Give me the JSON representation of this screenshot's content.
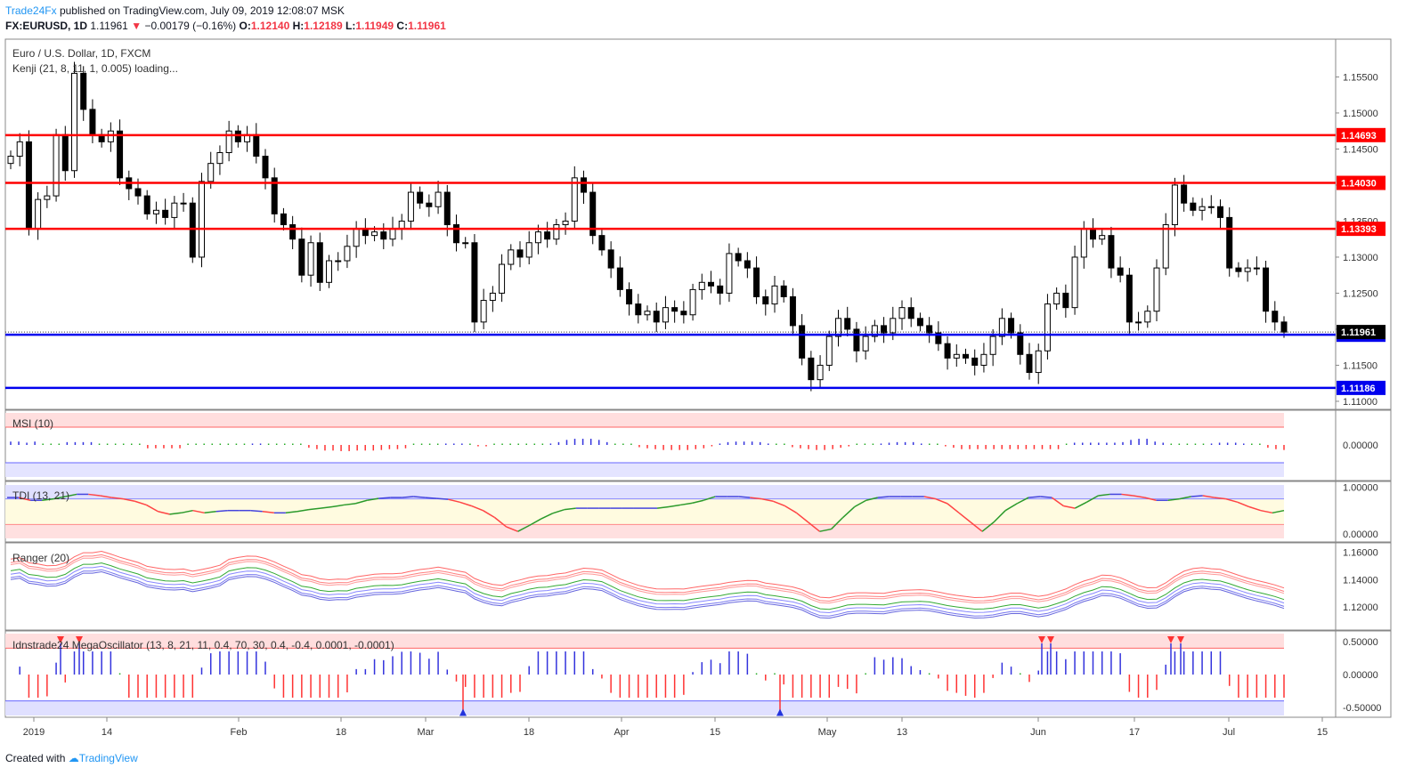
{
  "header": {
    "brand": "Trade24Fx",
    "published": "published on TradingView.com, July 09, 2019 12:08:07 MSK",
    "symbol": "FX:EURUSD, 1D",
    "last": "1.11961",
    "change": "−0.00179 (−0.16%)",
    "o_label": "O:",
    "o": "1.12140",
    "h_label": "H:",
    "h": "1.12189",
    "l_label": "L:",
    "l": "1.11949",
    "c_label": "C:",
    "c": "1.11961"
  },
  "main_pane": {
    "title": "Euro / U.S. Dollar, 1D, FXCM",
    "indicator": "Kenji (21, 8, 11, 1, 0.005) loading..."
  },
  "panes": {
    "msi": "MSI (10)",
    "tdi": "TDI (13, 21)",
    "ranger": "Ranger (20)",
    "mega": "Idnstrade24 MegaOscillator (13, 8, 21, 11, 0.4, 70, 30, 0.4, -0.4, 0.0001, -0.0001)"
  },
  "footer": {
    "created": "Created with",
    "brand": "TradingView"
  },
  "colors": {
    "up": "#ffffff",
    "down": "#000000",
    "red_level": "#ff0000",
    "blue_level": "#0000ee",
    "osc_pos": "#3333dd",
    "osc_neg": "#ff3333",
    "osc_zero": "#22aa22"
  },
  "chart_data": [
    {
      "type": "candlestick",
      "title": "Euro / U.S. Dollar, 1D, FXCM",
      "ylim": [
        1.1095,
        1.1595
      ],
      "y_ticks": [
        "1.15500",
        "1.15000",
        "1.14500",
        "1.14000",
        "1.13500",
        "1.13000",
        "1.12500",
        "1.12000",
        "1.11500",
        "1.11000"
      ],
      "x_ticks": [
        "2019",
        "14",
        "Feb",
        "18",
        "Mar",
        "18",
        "Apr",
        "15",
        "May",
        "13",
        "Jun",
        "17",
        "Jul",
        "15"
      ],
      "levels": [
        {
          "value": 1.14693,
          "color": "red",
          "label": "1.14693"
        },
        {
          "value": 1.1403,
          "color": "red",
          "label": "1.14030"
        },
        {
          "value": 1.13393,
          "color": "red",
          "label": "1.13393"
        },
        {
          "value": 1.11923,
          "color": "blue",
          "label": "1.11923"
        },
        {
          "value": 1.11186,
          "color": "blue",
          "label": "1.11186"
        }
      ],
      "last_price": "1.11961",
      "closes": [
        1.144,
        1.146,
        1.134,
        1.138,
        1.1385,
        1.147,
        1.142,
        1.1555,
        1.1505,
        1.147,
        1.146,
        1.1475,
        1.141,
        1.1395,
        1.1385,
        1.136,
        1.1365,
        1.1355,
        1.1375,
        1.1375,
        1.13,
        1.1405,
        1.143,
        1.1445,
        1.1475,
        1.146,
        1.147,
        1.144,
        1.141,
        1.136,
        1.1345,
        1.1325,
        1.1275,
        1.132,
        1.1265,
        1.1295,
        1.1295,
        1.1315,
        1.134,
        1.133,
        1.1335,
        1.1325,
        1.134,
        1.135,
        1.139,
        1.1375,
        1.137,
        1.139,
        1.1345,
        1.132,
        1.132,
        1.121,
        1.124,
        1.125,
        1.129,
        1.131,
        1.13,
        1.132,
        1.1335,
        1.1325,
        1.1345,
        1.135,
        1.141,
        1.139,
        1.133,
        1.131,
        1.1285,
        1.1255,
        1.1235,
        1.122,
        1.1225,
        1.121,
        1.123,
        1.1225,
        1.122,
        1.1255,
        1.1265,
        1.126,
        1.125,
        1.1305,
        1.1295,
        1.1285,
        1.1245,
        1.1235,
        1.126,
        1.1245,
        1.1205,
        1.116,
        1.113,
        1.115,
        1.119,
        1.1215,
        1.12,
        1.117,
        1.119,
        1.1205,
        1.1195,
        1.1215,
        1.123,
        1.1215,
        1.1205,
        1.1195,
        1.118,
        1.116,
        1.1165,
        1.116,
        1.115,
        1.1165,
        1.119,
        1.1215,
        1.1195,
        1.1165,
        1.114,
        1.117,
        1.1235,
        1.125,
        1.123,
        1.13,
        1.134,
        1.1325,
        1.133,
        1.1285,
        1.1275,
        1.121,
        1.121,
        1.1225,
        1.1285,
        1.1345,
        1.14,
        1.1375,
        1.1365,
        1.137,
        1.137,
        1.1355,
        1.1285,
        1.128,
        1.1285,
        1.1285,
        1.1225,
        1.121,
        1.1196
      ]
    },
    {
      "type": "bar",
      "title": "MSI (10)",
      "ylim": [
        -0.5,
        0.5
      ],
      "y_ticks": [
        "0.00000"
      ],
      "values": [
        0.12,
        0.12,
        0.08,
        0.12,
        0.0,
        0.0,
        0.0,
        0.1,
        0.1,
        0.1,
        0.1,
        0.0,
        0.0,
        0.0,
        0.0,
        0.0,
        0.0,
        -0.12,
        -0.12,
        -0.12,
        -0.12,
        -0.12,
        0.0,
        0.0,
        0.0,
        0.0,
        0.0,
        0.0,
        0.0,
        0.0,
        0.05,
        0.05,
        0.0,
        0.0,
        0.0,
        0.0,
        0.0,
        -0.1,
        -0.15,
        -0.2,
        -0.2,
        -0.22,
        -0.22,
        -0.2,
        -0.2,
        -0.2,
        -0.18,
        -0.15,
        -0.15,
        -0.12,
        0.0,
        0.0,
        0.0,
        0.0,
        0.05,
        0.05,
        0.05,
        0.0,
        -0.05,
        -0.05,
        0.0,
        0.0,
        0.0,
        0.0,
        0.0,
        0.0,
        0.0,
        0.05,
        0.1,
        0.18,
        0.22,
        0.22,
        0.22,
        0.18,
        0.1,
        0.0,
        0.0,
        0.0,
        -0.08,
        -0.12,
        -0.15,
        -0.18,
        -0.18,
        -0.18,
        -0.18,
        -0.15,
        -0.12,
        -0.05,
        0.05,
        0.1,
        0.12,
        0.12,
        0.12,
        0.1,
        0.05,
        0.0,
        0.0,
        -0.08,
        -0.12,
        -0.15,
        -0.18,
        -0.18,
        -0.15,
        -0.1,
        -0.05,
        0.0,
        0.0,
        0.0,
        0.05,
        0.08,
        0.1,
        0.1,
        0.1,
        0.05,
        0.0,
        0.0,
        -0.05,
        -0.1,
        -0.15,
        -0.15,
        -0.15,
        -0.15,
        -0.15,
        -0.15,
        -0.15,
        -0.15,
        -0.15,
        -0.15,
        -0.15,
        -0.15,
        -0.15,
        0.0,
        0.08,
        0.08,
        0.08,
        0.08,
        0.08,
        0.08,
        0.1,
        0.18,
        0.22,
        0.22,
        0.12,
        0.08,
        0.0,
        0.0,
        0.0,
        0.0,
        0.0,
        0.05,
        0.08,
        0.08,
        0.08,
        0.05,
        0.0,
        0.0,
        -0.1,
        -0.15,
        -0.18
      ]
    },
    {
      "type": "line",
      "title": "TDI (13, 21)",
      "ylim": [
        -0.1,
        1.05
      ],
      "y_ticks": [
        "1.00000",
        "0.00000"
      ],
      "values": [
        0.78,
        0.78,
        0.72,
        0.72,
        0.75,
        0.8,
        0.85,
        0.85,
        0.82,
        0.78,
        0.75,
        0.7,
        0.62,
        0.48,
        0.42,
        0.45,
        0.5,
        0.45,
        0.48,
        0.5,
        0.5,
        0.5,
        0.48,
        0.45,
        0.45,
        0.48,
        0.52,
        0.55,
        0.58,
        0.62,
        0.65,
        0.72,
        0.76,
        0.78,
        0.78,
        0.8,
        0.78,
        0.76,
        0.74,
        0.68,
        0.6,
        0.5,
        0.35,
        0.15,
        0.05,
        0.18,
        0.32,
        0.44,
        0.52,
        0.55,
        0.55,
        0.55,
        0.55,
        0.55,
        0.55,
        0.55,
        0.55,
        0.58,
        0.62,
        0.66,
        0.72,
        0.8,
        0.8,
        0.8,
        0.78,
        0.75,
        0.7,
        0.6,
        0.45,
        0.25,
        0.05,
        0.1,
        0.35,
        0.58,
        0.72,
        0.78,
        0.8,
        0.8,
        0.8,
        0.8,
        0.75,
        0.65,
        0.45,
        0.25,
        0.05,
        0.25,
        0.5,
        0.65,
        0.78,
        0.8,
        0.78,
        0.6,
        0.55,
        0.68,
        0.82,
        0.85,
        0.85,
        0.82,
        0.78,
        0.72,
        0.72,
        0.75,
        0.8,
        0.82,
        0.78,
        0.75,
        0.68,
        0.58,
        0.5,
        0.45,
        0.5
      ]
    },
    {
      "type": "line",
      "title": "Ranger (20)",
      "ylim": [
        1.105,
        1.165
      ],
      "y_ticks": [
        "1.16000",
        "1.14000",
        "1.12000"
      ]
    },
    {
      "type": "bar",
      "title": "Idnstrade24 MegaOscillator (13, 8, 21, 11, 0.4, 70, 30, 0.4, -0.4, 0.0001, -0.0001)",
      "ylim": [
        -0.62,
        0.62
      ],
      "y_ticks": [
        "0.50000",
        "0.00000",
        "-0.50000"
      ]
    }
  ]
}
